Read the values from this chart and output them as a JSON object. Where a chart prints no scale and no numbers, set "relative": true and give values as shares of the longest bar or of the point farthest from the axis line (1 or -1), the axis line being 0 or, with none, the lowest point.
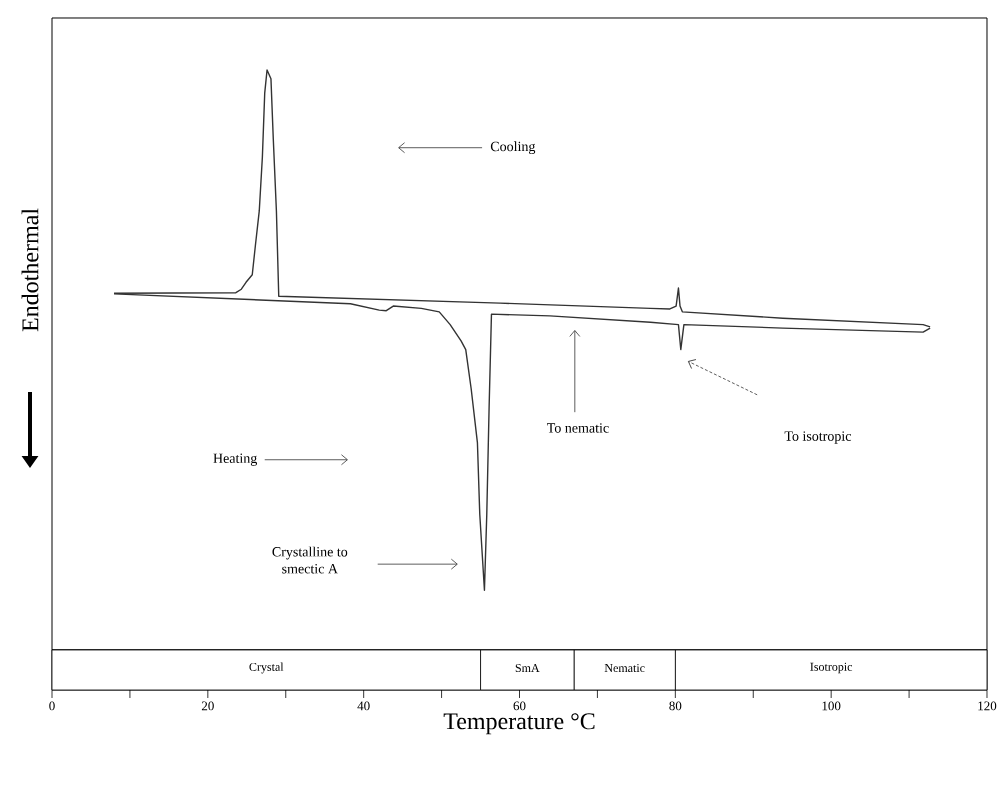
{
  "chart_data": [
    {
      "type": "line",
      "ylabel": "Endothermal",
      "relative": true,
      "xlim": [
        0,
        120
      ],
      "series": [
        {
          "color": "#333333",
          "x": [
            7.96,
            23.6,
            24.3,
            24.9,
            25.7,
            26.1,
            26.6,
            27.0,
            27.3,
            27.6,
            28.1,
            28.4,
            28.8,
            29.1,
            57.5,
            76.8,
            79.3,
            80.1,
            80.4,
            80.6,
            80.9,
            93.8,
            111.8,
            112.7
          ],
          "values": [
            0.615,
            0.616,
            0.622,
            0.634,
            0.647,
            0.697,
            0.757,
            0.85,
            0.96,
            1.0,
            0.985,
            0.881,
            0.757,
            0.61,
            0.598,
            0.589,
            0.588,
            0.593,
            0.624,
            0.593,
            0.583,
            0.572,
            0.561,
            0.557
          ]
        },
        {
          "color": "#333333",
          "x": [
            7.96,
            38.3,
            42.0,
            42.9,
            43.8,
            47.4,
            49.7,
            51.1,
            52.5,
            53.1,
            53.8,
            54.6,
            54.9,
            55.5,
            55.8,
            56.1,
            56.4,
            63.9,
            76.8,
            80.4,
            80.7,
            81.1,
            93.8,
            111.8,
            112.7
          ],
          "values": [
            0.614,
            0.597,
            0.586,
            0.585,
            0.593,
            0.589,
            0.583,
            0.561,
            0.533,
            0.518,
            0.45,
            0.357,
            0.234,
            0.103,
            0.234,
            0.419,
            0.579,
            0.576,
            0.565,
            0.561,
            0.518,
            0.561,
            0.555,
            0.548,
            0.555
          ]
        }
      ],
      "annotations": [
        "Cooling",
        "Heating",
        "Crystalline to smectic A",
        "To nematic",
        "To isotropic"
      ]
    },
    {
      "type": "bar",
      "orientation": "horizontal",
      "stacked": true,
      "xlabel": "Temperature °C",
      "xlim": [
        0,
        120
      ],
      "xticks": [
        0,
        {
          "value": 10,
          "label": null
        },
        20,
        {
          "value": 30,
          "label": null
        },
        40,
        {
          "value": 50,
          "label": null
        },
        60,
        {
          "value": 70,
          "label": null
        },
        80,
        {
          "value": 90,
          "label": null
        },
        100,
        {
          "value": 110,
          "label": null
        },
        120
      ],
      "categories": [
        null
      ],
      "series": [
        {
          "name": "Crystal",
          "color": "#ffffff",
          "values": [
            55
          ]
        },
        {
          "name": "SmA",
          "color": "#ffffff",
          "values": [
            12
          ]
        },
        {
          "name": "Nematic",
          "color": "#ffffff",
          "values": [
            13
          ]
        },
        {
          "name": "Isotropic",
          "color": "#ffffff",
          "values": [
            40
          ]
        }
      ]
    }
  ]
}
